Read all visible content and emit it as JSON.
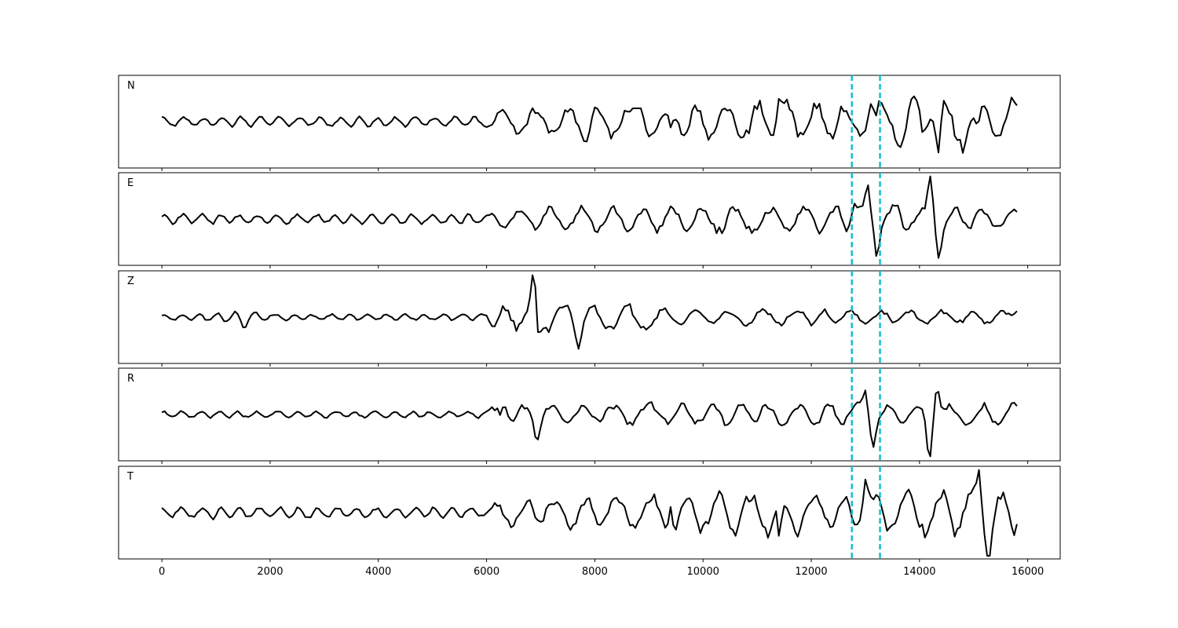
{
  "chart_data": {
    "type": "line",
    "xlim": [
      -800,
      16600
    ],
    "x_ticks": [
      0,
      2000,
      4000,
      6000,
      8000,
      10000,
      12000,
      14000,
      16000
    ],
    "x_tick_labels": [
      "0",
      "2000",
      "4000",
      "6000",
      "8000",
      "10000",
      "12000",
      "14000",
      "16000"
    ],
    "x_range": [
      0,
      15800
    ],
    "sample_step": 50,
    "shared_x": true,
    "grid": false,
    "markers": {
      "x": [
        12750,
        13270
      ],
      "color": "#17becf",
      "style": "dashed"
    },
    "trace_color": "#000000",
    "panels": [
      {
        "label": "N",
        "envelope": [
          {
            "x": 0,
            "amp": 0.12
          },
          {
            "x": 6000,
            "amp": 0.12
          },
          {
            "x": 6200,
            "amp": 0.3
          },
          {
            "x": 7500,
            "amp": 0.45
          },
          {
            "x": 11000,
            "amp": 0.5
          },
          {
            "x": 12700,
            "amp": 0.45
          },
          {
            "x": 13200,
            "amp": 0.55
          },
          {
            "x": 14500,
            "amp": 0.75
          },
          {
            "x": 15800,
            "amp": 0.6
          }
        ],
        "peaks": [
          {
            "x": 11400,
            "y": 0.7
          },
          {
            "x": 14360,
            "y": -0.85
          },
          {
            "x": 14200,
            "y": 0.7
          },
          {
            "x": 15100,
            "y": -0.7
          },
          {
            "x": 13100,
            "y": 0.6
          },
          {
            "x": 9400,
            "y": -0.55
          }
        ]
      },
      {
        "label": "E",
        "envelope": [
          {
            "x": 0,
            "amp": 0.12
          },
          {
            "x": 6000,
            "amp": 0.12
          },
          {
            "x": 6200,
            "amp": 0.3
          },
          {
            "x": 12600,
            "amp": 0.35
          },
          {
            "x": 13300,
            "amp": 0.3
          },
          {
            "x": 14000,
            "amp": 0.3
          },
          {
            "x": 15800,
            "amp": 0.25
          }
        ],
        "peaks": [
          {
            "x": 13050,
            "y": 0.72
          },
          {
            "x": 13220,
            "y": -0.62
          },
          {
            "x": 14200,
            "y": 0.85
          },
          {
            "x": 14350,
            "y": -0.75
          },
          {
            "x": 12780,
            "y": 0.35
          },
          {
            "x": 13600,
            "y": 0.25
          }
        ]
      },
      {
        "label": "Z",
        "envelope": [
          {
            "x": 0,
            "amp": 0.05
          },
          {
            "x": 1400,
            "amp": 0.15
          },
          {
            "x": 2200,
            "amp": 0.08
          },
          {
            "x": 5800,
            "amp": 0.08
          },
          {
            "x": 6200,
            "amp": 0.3
          },
          {
            "x": 8500,
            "amp": 0.4
          },
          {
            "x": 10000,
            "amp": 0.2
          },
          {
            "x": 15800,
            "amp": 0.15
          }
        ],
        "peaks": [
          {
            "x": 6880,
            "y": 1.0
          },
          {
            "x": 6950,
            "y": -0.7
          },
          {
            "x": 7700,
            "y": -0.5
          },
          {
            "x": 1520,
            "y": -0.2
          },
          {
            "x": 15800,
            "y": 0.22
          }
        ]
      },
      {
        "label": "R",
        "envelope": [
          {
            "x": 0,
            "amp": 0.08
          },
          {
            "x": 6000,
            "amp": 0.08
          },
          {
            "x": 6200,
            "amp": 0.25
          },
          {
            "x": 12600,
            "amp": 0.3
          },
          {
            "x": 13300,
            "amp": 0.25
          },
          {
            "x": 15800,
            "amp": 0.3
          }
        ],
        "peaks": [
          {
            "x": 13000,
            "y": 0.58
          },
          {
            "x": 13150,
            "y": -0.55
          },
          {
            "x": 14320,
            "y": 0.85
          },
          {
            "x": 14180,
            "y": -0.92
          },
          {
            "x": 6340,
            "y": 0.42
          },
          {
            "x": 6940,
            "y": -0.45
          }
        ]
      },
      {
        "label": "T",
        "envelope": [
          {
            "x": 0,
            "amp": 0.12
          },
          {
            "x": 1000,
            "amp": 0.15
          },
          {
            "x": 6000,
            "amp": 0.12
          },
          {
            "x": 6200,
            "amp": 0.3
          },
          {
            "x": 9000,
            "amp": 0.45
          },
          {
            "x": 11500,
            "amp": 0.55
          },
          {
            "x": 13000,
            "amp": 0.45
          },
          {
            "x": 14500,
            "amp": 0.6
          },
          {
            "x": 15800,
            "amp": 0.55
          }
        ],
        "peaks": [
          {
            "x": 9420,
            "y": 0.78
          },
          {
            "x": 9460,
            "y": -0.6
          },
          {
            "x": 11420,
            "y": -0.82
          },
          {
            "x": 15100,
            "y": 0.95
          },
          {
            "x": 15270,
            "y": -0.75
          },
          {
            "x": 13000,
            "y": 0.75
          }
        ]
      }
    ]
  }
}
